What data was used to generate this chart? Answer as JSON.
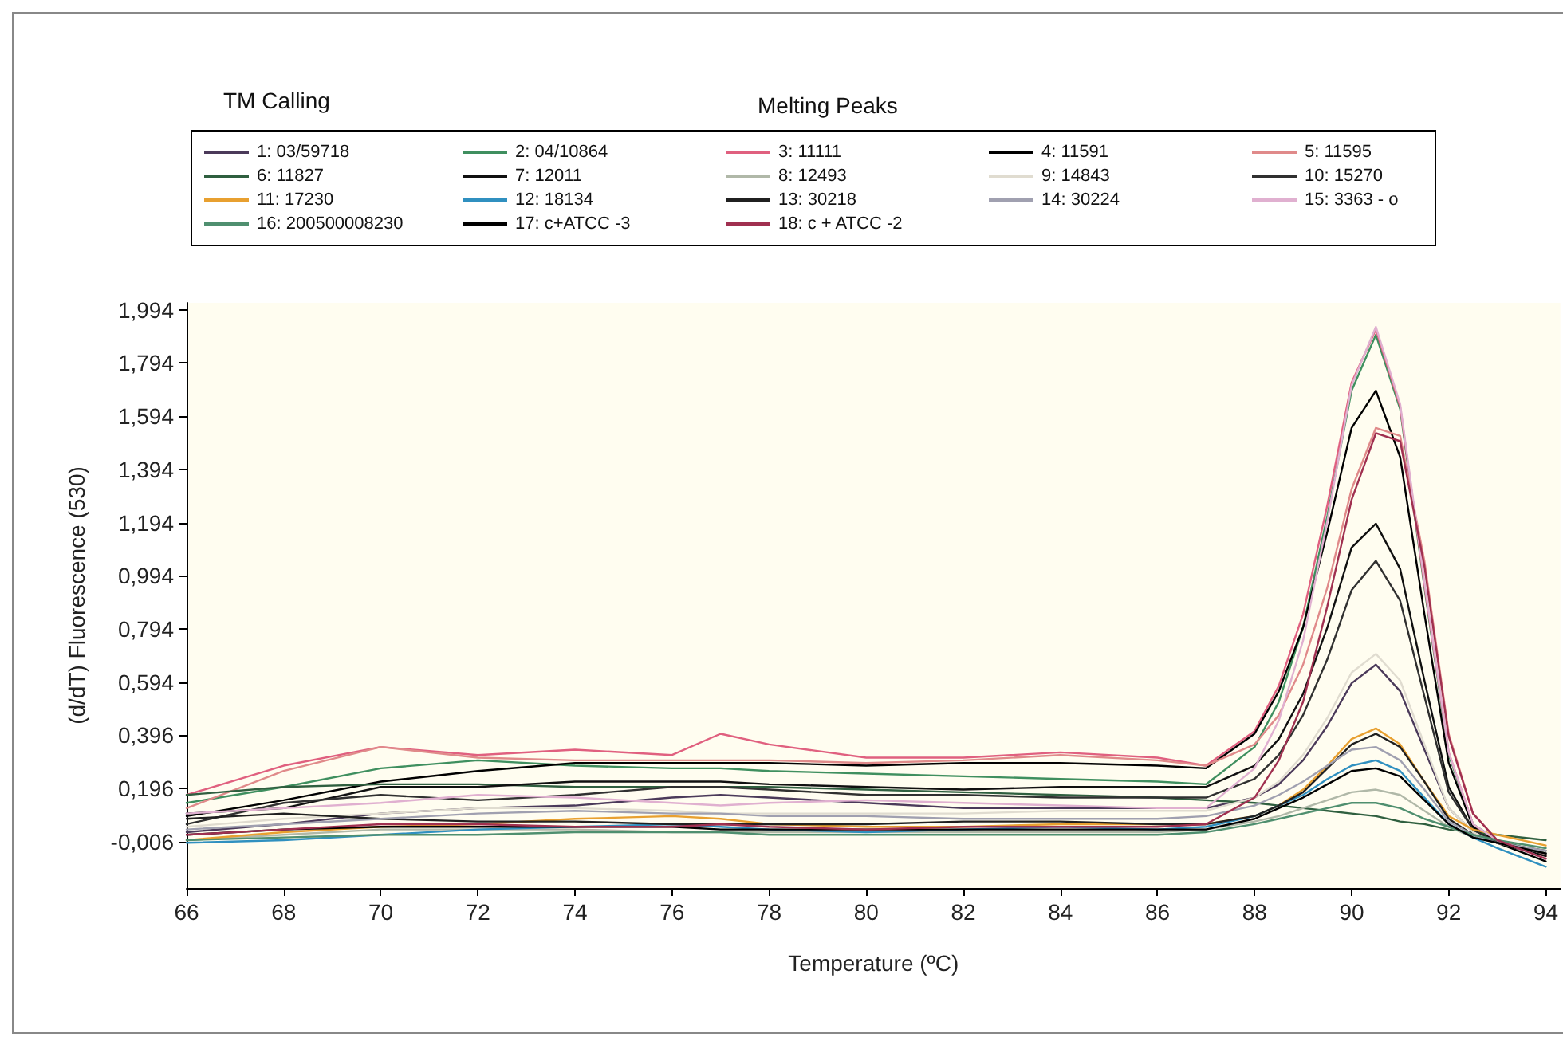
{
  "chart_data": {
    "type": "line",
    "title": "Melting Peaks",
    "annotations": [
      "TM Calling"
    ],
    "xlabel": "Temperature (ºC)",
    "ylabel": "(d/dT) Fluorescence (530)",
    "x": [
      66,
      68,
      70,
      72,
      74,
      76,
      77,
      78,
      80,
      82,
      84,
      86,
      87,
      88,
      88.5,
      89,
      89.5,
      90,
      90.5,
      91,
      91.5,
      92,
      92.5,
      93,
      94
    ],
    "xlim": [
      66,
      94.3
    ],
    "xticks": [
      66,
      68,
      70,
      72,
      74,
      76,
      78,
      80,
      82,
      84,
      86,
      88,
      90,
      92,
      94
    ],
    "ylim": [
      -0.18,
      2.02
    ],
    "yticks": [
      {
        "value": -0.006,
        "label": "-0,006"
      },
      {
        "value": 0.196,
        "label": "0,196"
      },
      {
        "value": 0.396,
        "label": "0,396"
      },
      {
        "value": 0.594,
        "label": "0,594"
      },
      {
        "value": 0.794,
        "label": "0,794"
      },
      {
        "value": 0.994,
        "label": "0,994"
      },
      {
        "value": 1.194,
        "label": "1,194"
      },
      {
        "value": 1.394,
        "label": "1,394"
      },
      {
        "value": 1.594,
        "label": "1,594"
      },
      {
        "value": 1.794,
        "label": "1,794"
      },
      {
        "value": 1.994,
        "label": "1,994"
      }
    ],
    "grid": false,
    "legend": "top",
    "series": [
      {
        "name": "1: 03/59718",
        "color": "#4b3a5a",
        "values": [
          0.03,
          0.06,
          0.1,
          0.12,
          0.13,
          0.16,
          0.17,
          0.16,
          0.14,
          0.12,
          0.12,
          0.12,
          0.12,
          0.16,
          0.21,
          0.3,
          0.43,
          0.59,
          0.66,
          0.56,
          0.34,
          0.12,
          0.03,
          -0.01,
          -0.05
        ]
      },
      {
        "name": "2: 04/10864",
        "color": "#3f8f5f",
        "values": [
          0.14,
          0.2,
          0.27,
          0.3,
          0.28,
          0.27,
          0.27,
          0.26,
          0.25,
          0.24,
          0.23,
          0.22,
          0.21,
          0.35,
          0.52,
          0.8,
          1.22,
          1.69,
          1.9,
          1.62,
          0.95,
          0.32,
          0.06,
          0.0,
          -0.05
        ]
      },
      {
        "name": "3: 11111",
        "color": "#e0607f",
        "values": [
          0.17,
          0.28,
          0.35,
          0.32,
          0.34,
          0.32,
          0.4,
          0.36,
          0.31,
          0.31,
          0.33,
          0.31,
          0.28,
          0.41,
          0.58,
          0.85,
          1.26,
          1.72,
          1.92,
          1.63,
          0.96,
          0.33,
          0.06,
          -0.01,
          -0.06
        ]
      },
      {
        "name": "4: 11591",
        "color": "#000000",
        "values": [
          0.09,
          0.15,
          0.22,
          0.26,
          0.29,
          0.29,
          0.29,
          0.29,
          0.28,
          0.29,
          0.29,
          0.28,
          0.27,
          0.4,
          0.56,
          0.8,
          1.16,
          1.55,
          1.69,
          1.44,
          0.85,
          0.29,
          0.05,
          -0.01,
          -0.08
        ]
      },
      {
        "name": "5: 11595",
        "color": "#e08a8a",
        "values": [
          0.12,
          0.26,
          0.35,
          0.31,
          0.3,
          0.3,
          0.3,
          0.3,
          0.29,
          0.3,
          0.32,
          0.3,
          0.28,
          0.36,
          0.47,
          0.66,
          0.95,
          1.32,
          1.55,
          1.52,
          1.05,
          0.4,
          0.1,
          0.0,
          -0.06
        ]
      },
      {
        "name": "6: 11827",
        "color": "#2f5f3f",
        "values": [
          0.17,
          0.2,
          0.21,
          0.21,
          0.2,
          0.2,
          0.2,
          0.2,
          0.19,
          0.18,
          0.17,
          0.16,
          0.15,
          0.14,
          0.13,
          0.12,
          0.11,
          0.1,
          0.09,
          0.07,
          0.06,
          0.04,
          0.03,
          0.02,
          0.0
        ]
      },
      {
        "name": "7: 12011",
        "color": "#101010",
        "values": [
          0.1,
          0.12,
          0.2,
          0.2,
          0.22,
          0.22,
          0.22,
          0.21,
          0.2,
          0.19,
          0.2,
          0.2,
          0.2,
          0.28,
          0.38,
          0.55,
          0.8,
          1.1,
          1.19,
          1.02,
          0.6,
          0.2,
          0.04,
          -0.01,
          -0.06
        ]
      },
      {
        "name": "8: 12493",
        "color": "#b0b8a8",
        "values": [
          0.0,
          0.02,
          0.04,
          0.04,
          0.04,
          0.03,
          0.03,
          0.03,
          0.03,
          0.03,
          0.03,
          0.03,
          0.04,
          0.07,
          0.09,
          0.12,
          0.15,
          0.18,
          0.19,
          0.17,
          0.11,
          0.05,
          0.01,
          -0.01,
          -0.05
        ]
      },
      {
        "name": "9: 14843",
        "color": "#e0dcd0",
        "values": [
          0.05,
          0.08,
          0.1,
          0.12,
          0.12,
          0.11,
          0.1,
          0.1,
          0.1,
          0.1,
          0.11,
          0.11,
          0.11,
          0.16,
          0.22,
          0.32,
          0.46,
          0.63,
          0.7,
          0.6,
          0.36,
          0.12,
          0.03,
          -0.01,
          -0.05
        ]
      },
      {
        "name": "10: 15270",
        "color": "#303030",
        "values": [
          0.06,
          0.14,
          0.17,
          0.15,
          0.17,
          0.2,
          0.2,
          0.19,
          0.17,
          0.17,
          0.16,
          0.16,
          0.16,
          0.23,
          0.32,
          0.47,
          0.68,
          0.94,
          1.05,
          0.9,
          0.54,
          0.18,
          0.04,
          -0.01,
          -0.05
        ]
      },
      {
        "name": "11: 17230",
        "color": "#e8a030",
        "values": [
          0.0,
          0.03,
          0.05,
          0.06,
          0.08,
          0.09,
          0.08,
          0.06,
          0.05,
          0.05,
          0.06,
          0.06,
          0.06,
          0.09,
          0.13,
          0.19,
          0.28,
          0.38,
          0.42,
          0.36,
          0.22,
          0.09,
          0.04,
          0.02,
          -0.02
        ]
      },
      {
        "name": "12: 18134",
        "color": "#3090c0",
        "values": [
          -0.01,
          0.0,
          0.02,
          0.04,
          0.05,
          0.06,
          0.05,
          0.04,
          0.03,
          0.04,
          0.05,
          0.04,
          0.05,
          0.09,
          0.13,
          0.17,
          0.23,
          0.28,
          0.3,
          0.26,
          0.16,
          0.06,
          0.01,
          -0.03,
          -0.1
        ]
      },
      {
        "name": "13: 30218",
        "color": "#202020",
        "values": [
          0.08,
          0.1,
          0.08,
          0.07,
          0.07,
          0.06,
          0.06,
          0.06,
          0.06,
          0.07,
          0.07,
          0.06,
          0.06,
          0.09,
          0.13,
          0.18,
          0.27,
          0.36,
          0.4,
          0.35,
          0.22,
          0.08,
          0.02,
          -0.01,
          -0.04
        ]
      },
      {
        "name": "14: 30224",
        "color": "#a0a0b0",
        "values": [
          0.04,
          0.06,
          0.08,
          0.1,
          0.11,
          0.1,
          0.1,
          0.09,
          0.09,
          0.08,
          0.08,
          0.08,
          0.09,
          0.13,
          0.17,
          0.22,
          0.28,
          0.34,
          0.35,
          0.3,
          0.19,
          0.07,
          0.02,
          -0.01,
          -0.04
        ]
      },
      {
        "name": "15: 3363 - o",
        "color": "#e0b0d0",
        "values": [
          0.1,
          0.12,
          0.14,
          0.17,
          0.16,
          0.14,
          0.13,
          0.14,
          0.15,
          0.14,
          0.13,
          0.12,
          0.12,
          0.27,
          0.45,
          0.75,
          1.2,
          1.71,
          1.93,
          1.64,
          0.97,
          0.33,
          0.06,
          0.0,
          -0.07
        ]
      },
      {
        "name": "16: 200500008230",
        "color": "#4f8f6f",
        "values": [
          0.0,
          0.01,
          0.02,
          0.02,
          0.03,
          0.03,
          0.03,
          0.02,
          0.02,
          0.02,
          0.02,
          0.02,
          0.03,
          0.06,
          0.08,
          0.1,
          0.12,
          0.14,
          0.14,
          0.12,
          0.08,
          0.05,
          0.02,
          0.0,
          -0.03
        ]
      },
      {
        "name": "17: c+ATCC -3",
        "color": "#000000",
        "values": [
          0.02,
          0.04,
          0.05,
          0.05,
          0.05,
          0.05,
          0.04,
          0.04,
          0.04,
          0.04,
          0.04,
          0.04,
          0.04,
          0.08,
          0.12,
          0.16,
          0.21,
          0.26,
          0.27,
          0.24,
          0.15,
          0.06,
          0.01,
          -0.01,
          -0.05
        ]
      },
      {
        "name": "18: c + ATCC -2",
        "color": "#a03050",
        "values": [
          0.02,
          0.04,
          0.06,
          0.06,
          0.05,
          0.05,
          0.06,
          0.05,
          0.04,
          0.05,
          0.05,
          0.05,
          0.06,
          0.16,
          0.3,
          0.52,
          0.88,
          1.28,
          1.53,
          1.5,
          1.03,
          0.39,
          0.1,
          0.0,
          -0.07
        ]
      }
    ]
  }
}
